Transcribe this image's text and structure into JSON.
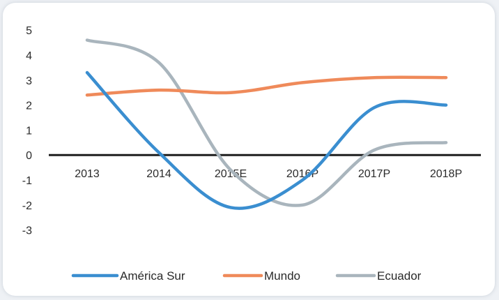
{
  "chart_data": {
    "type": "line",
    "categories": [
      "2013",
      "2014",
      "2015E",
      "2016P",
      "2017P",
      "2018P"
    ],
    "series": [
      {
        "name": "América Sur",
        "color": "#3a8ed0",
        "values": [
          3.3,
          0.1,
          -2.1,
          -1.0,
          1.9,
          2.0
        ]
      },
      {
        "name": "Mundo",
        "color": "#ef8a5a",
        "values": [
          2.4,
          2.6,
          2.5,
          2.9,
          3.1,
          3.1
        ]
      },
      {
        "name": "Ecuador",
        "color": "#a9b5bd",
        "values": [
          4.6,
          3.7,
          -0.6,
          -2.0,
          0.2,
          0.5
        ]
      }
    ],
    "yticks": [
      -3,
      -2,
      -1,
      0,
      1,
      2,
      3,
      4,
      5
    ],
    "ylim": [
      -3.4,
      5.2
    ],
    "legend_position": "bottom",
    "grid": false
  }
}
